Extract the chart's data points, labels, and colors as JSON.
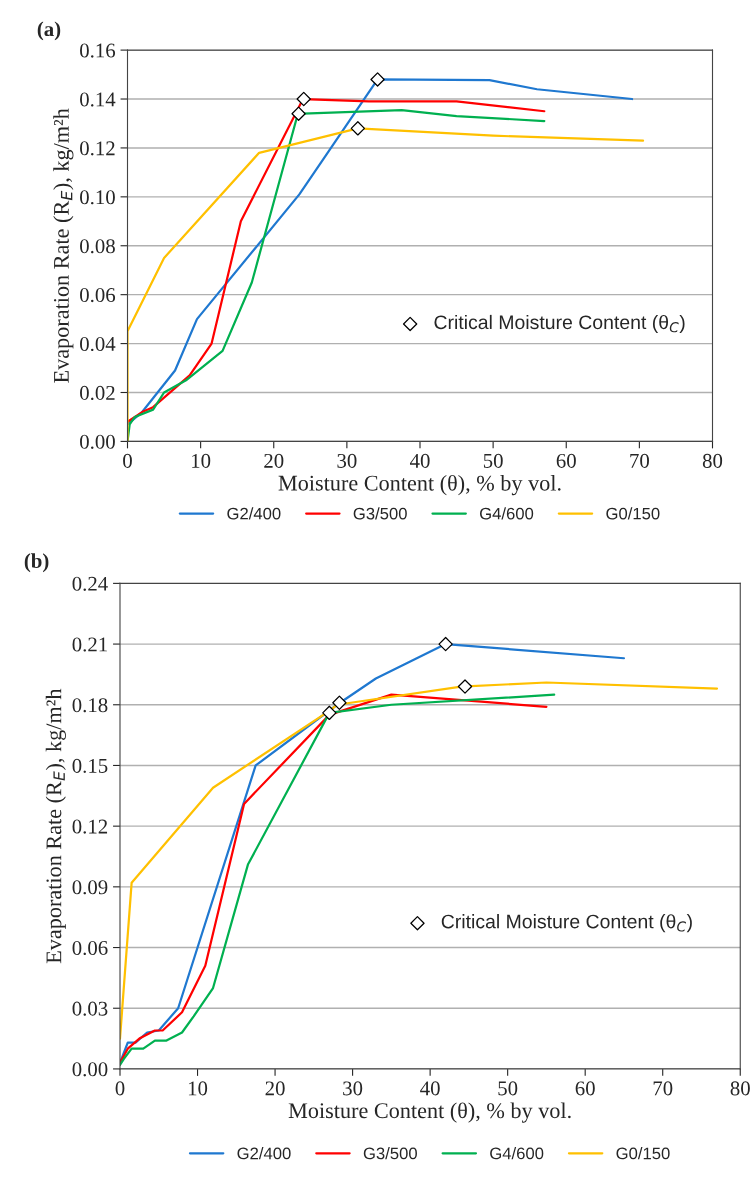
{
  "chart_data": [
    {
      "type": "line",
      "title": "(a)",
      "xlabel": "Moisture Content (θ), % by vol.",
      "ylabel": "Evaporation Rate (R$_{E}$), kg/m²h",
      "xlim": [
        0,
        80
      ],
      "xticks": [
        0,
        10,
        20,
        30,
        40,
        50,
        60,
        70,
        80
      ],
      "ylim": [
        0,
        0.16
      ],
      "yticks": [
        {
          "value": 0,
          "label": "0.00"
        },
        {
          "value": 0.02,
          "label": "0.02"
        },
        {
          "value": 0.04,
          "label": "0.04"
        },
        {
          "value": 0.06,
          "label": "0.06"
        },
        {
          "value": 0.08,
          "label": "0.08"
        },
        {
          "value": 0.1,
          "label": "0.10"
        },
        {
          "value": 0.12,
          "label": "0.12"
        },
        {
          "value": 0.14,
          "label": "0.14"
        },
        {
          "value": 0.16,
          "label": "0.16"
        }
      ],
      "grid": "y",
      "legend": "bottom",
      "marker": "none",
      "line_style": "solid",
      "series": [
        {
          "name": "G2/400",
          "color": "#1f78d0",
          "x": [
            0,
            2,
            6.5,
            9.5,
            23.5,
            34.2,
            49.5,
            56,
            69
          ],
          "values": [
            0.007,
            0.012,
            0.029,
            0.05,
            0.101,
            0.148,
            0.1477,
            0.144,
            0.14
          ]
        },
        {
          "name": "G3/500",
          "color": "#ff0000",
          "x": [
            0,
            2,
            3.5,
            8.5,
            11.5,
            15.5,
            24,
            33,
            45,
            57
          ],
          "values": [
            0.008,
            0.012,
            0.014,
            0.027,
            0.04,
            0.09,
            0.14,
            0.139,
            0.139,
            0.135
          ]
        },
        {
          "name": "G4/600",
          "color": "#00b050",
          "x": [
            0,
            0.3,
            1,
            3.5,
            5,
            8,
            13,
            17,
            23.3,
            24,
            37.5,
            45,
            57
          ],
          "values": [
            0.0,
            0.007,
            0.01,
            0.013,
            0.02,
            0.025,
            0.037,
            0.065,
            0.134,
            0.134,
            0.1355,
            0.133,
            0.131
          ]
        },
        {
          "name": "G0/150",
          "color": "#ffc000",
          "x": [
            0,
            0,
            5,
            18,
            31.5,
            50,
            70.5
          ],
          "values": [
            0.0,
            0.045,
            0.075,
            0.118,
            0.128,
            0.125,
            0.123
          ]
        },
        {
          "name": "Critical Moisture Content (θ$_{C}$)",
          "type": "scatter",
          "marker": "diamond",
          "color": "#ffffff",
          "x": [
            34.2,
            24.1,
            23.4,
            31.5
          ],
          "values": [
            0.148,
            0.14,
            0.134,
            0.128
          ]
        }
      ]
    },
    {
      "type": "line",
      "title": "(b)",
      "xlabel": "Moisture Content (θ), % by vol.",
      "ylabel": "Evaporation Rate (R$_{E}$), kg/m²h",
      "xlim": [
        0,
        80
      ],
      "xticks": [
        0,
        10,
        20,
        30,
        40,
        50,
        60,
        70,
        80
      ],
      "ylim": [
        0,
        0.24
      ],
      "yticks": [
        {
          "value": 0,
          "label": "0.00"
        },
        {
          "value": 0.03,
          "label": "0.03"
        },
        {
          "value": 0.06,
          "label": "0.06"
        },
        {
          "value": 0.09,
          "label": "0.09"
        },
        {
          "value": 0.12,
          "label": "0.12"
        },
        {
          "value": 0.15,
          "label": "0.15"
        },
        {
          "value": 0.18,
          "label": "0.18"
        },
        {
          "value": 0.21,
          "label": "0.21"
        },
        {
          "value": 0.24,
          "label": "0.24"
        }
      ],
      "grid": "y",
      "legend": "bottom",
      "marker": "none",
      "line_style": "solid",
      "series": [
        {
          "name": "G2/400",
          "color": "#1f78d0",
          "x": [
            0,
            1,
            2,
            3.5,
            5,
            7.5,
            17.5,
            28,
            33,
            42,
            65
          ],
          "values": [
            0.003,
            0.013,
            0.013,
            0.018,
            0.019,
            0.03,
            0.15,
            0.18,
            0.193,
            0.21,
            0.203
          ]
        },
        {
          "name": "G3/500",
          "color": "#ff0000",
          "x": [
            0,
            1,
            2.5,
            4.5,
            5.5,
            8,
            11,
            16,
            27,
            35,
            55
          ],
          "values": [
            0.003,
            0.01,
            0.015,
            0.019,
            0.019,
            0.028,
            0.051,
            0.131,
            0.175,
            0.185,
            0.179
          ]
        },
        {
          "name": "G4/600",
          "color": "#00b050",
          "x": [
            0,
            0.5,
            1.5,
            3,
            4.5,
            6,
            8,
            9.5,
            12,
            16.5,
            27,
            35,
            56
          ],
          "values": [
            0.002,
            0.005,
            0.01,
            0.01,
            0.014,
            0.014,
            0.018,
            0.026,
            0.04,
            0.101,
            0.176,
            0.18,
            0.185
          ]
        },
        {
          "name": "G0/150",
          "color": "#ffc000",
          "x": [
            0,
            1.5,
            12,
            27,
            28,
            44,
            55,
            77
          ],
          "values": [
            0.015,
            0.092,
            0.139,
            0.177,
            0.18,
            0.189,
            0.191,
            0.188
          ]
        },
        {
          "name": "Critical Moisture Content (θ$_{C}$)",
          "type": "scatter",
          "marker": "diamond",
          "color": "#ffffff",
          "x": [
            27,
            28.3,
            42,
            44.5
          ],
          "values": [
            0.176,
            0.181,
            0.21,
            0.189
          ]
        }
      ]
    }
  ]
}
